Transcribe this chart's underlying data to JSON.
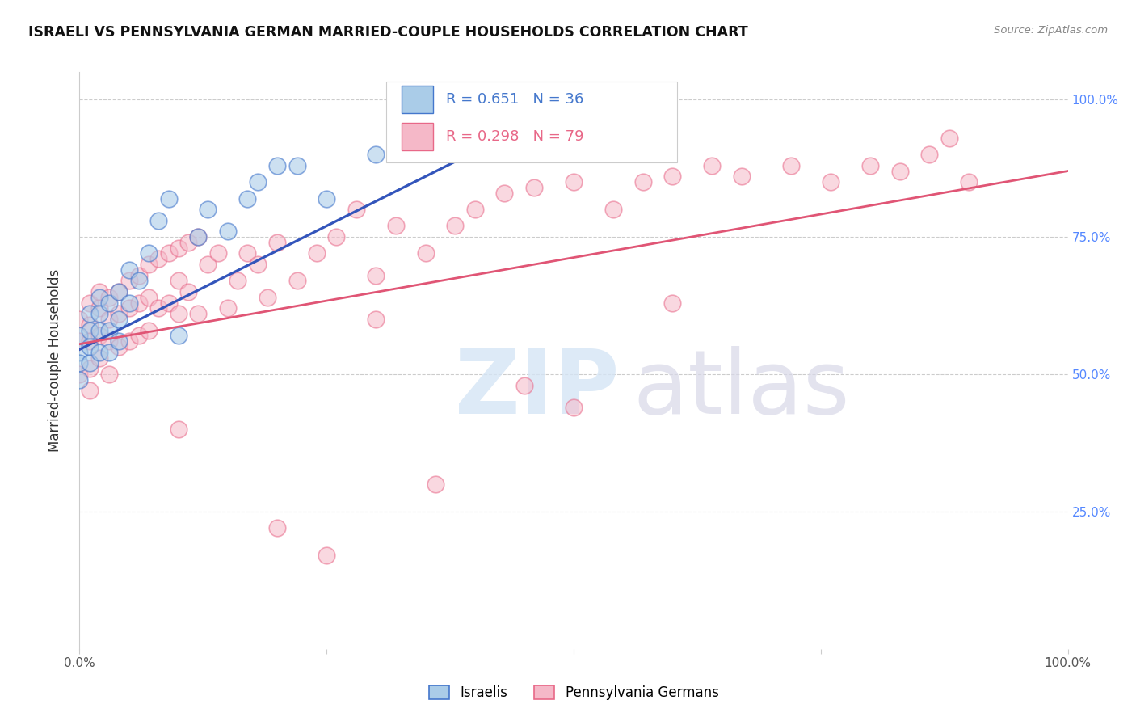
{
  "title": "ISRAELI VS PENNSYLVANIA GERMAN MARRIED-COUPLE HOUSEHOLDS CORRELATION CHART",
  "source": "Source: ZipAtlas.com",
  "ylabel": "Married-couple Households",
  "xlim": [
    0.0,
    1.0
  ],
  "ylim": [
    0.0,
    1.05
  ],
  "blue_R": 0.651,
  "blue_N": 36,
  "pink_R": 0.298,
  "pink_N": 79,
  "blue_fill": "#AACCE8",
  "pink_fill": "#F5B8C8",
  "blue_edge": "#4477CC",
  "pink_edge": "#E86888",
  "blue_line": "#3355BB",
  "pink_line": "#E05575",
  "legend_label_blue": "Israelis",
  "legend_label_pink": "Pennsylvania Germans",
  "ytick_positions": [
    0.25,
    0.5,
    0.75,
    1.0
  ],
  "ytick_labels": [
    "25.0%",
    "50.0%",
    "75.0%",
    "100.0%"
  ],
  "blue_x": [
    0.0,
    0.0,
    0.0,
    0.0,
    0.01,
    0.01,
    0.01,
    0.01,
    0.02,
    0.02,
    0.02,
    0.02,
    0.03,
    0.03,
    0.03,
    0.04,
    0.04,
    0.04,
    0.05,
    0.05,
    0.06,
    0.07,
    0.08,
    0.09,
    0.1,
    0.12,
    0.13,
    0.15,
    0.17,
    0.18,
    0.2,
    0.22,
    0.25,
    0.3,
    0.32,
    0.35
  ],
  "blue_y": [
    0.57,
    0.54,
    0.52,
    0.49,
    0.61,
    0.58,
    0.55,
    0.52,
    0.64,
    0.61,
    0.58,
    0.54,
    0.63,
    0.58,
    0.54,
    0.65,
    0.6,
    0.56,
    0.69,
    0.63,
    0.67,
    0.72,
    0.78,
    0.82,
    0.57,
    0.75,
    0.8,
    0.76,
    0.82,
    0.85,
    0.88,
    0.88,
    0.82,
    0.9,
    0.93,
    0.97
  ],
  "pink_x": [
    0.0,
    0.0,
    0.0,
    0.01,
    0.01,
    0.01,
    0.01,
    0.01,
    0.02,
    0.02,
    0.02,
    0.02,
    0.03,
    0.03,
    0.03,
    0.03,
    0.04,
    0.04,
    0.04,
    0.05,
    0.05,
    0.05,
    0.06,
    0.06,
    0.06,
    0.07,
    0.07,
    0.07,
    0.08,
    0.08,
    0.09,
    0.09,
    0.1,
    0.1,
    0.1,
    0.11,
    0.11,
    0.12,
    0.12,
    0.13,
    0.14,
    0.15,
    0.16,
    0.17,
    0.18,
    0.19,
    0.2,
    0.22,
    0.24,
    0.26,
    0.28,
    0.3,
    0.32,
    0.35,
    0.38,
    0.4,
    0.43,
    0.46,
    0.5,
    0.54,
    0.57,
    0.6,
    0.64,
    0.67,
    0.72,
    0.76,
    0.8,
    0.83,
    0.86,
    0.88,
    0.9,
    0.45,
    0.5,
    0.36,
    0.2,
    0.25,
    0.1,
    0.3,
    0.6
  ],
  "pink_y": [
    0.6,
    0.56,
    0.5,
    0.63,
    0.59,
    0.56,
    0.51,
    0.47,
    0.65,
    0.62,
    0.57,
    0.53,
    0.64,
    0.6,
    0.56,
    0.5,
    0.65,
    0.61,
    0.55,
    0.67,
    0.62,
    0.56,
    0.68,
    0.63,
    0.57,
    0.7,
    0.64,
    0.58,
    0.71,
    0.62,
    0.72,
    0.63,
    0.73,
    0.67,
    0.61,
    0.74,
    0.65,
    0.75,
    0.61,
    0.7,
    0.72,
    0.62,
    0.67,
    0.72,
    0.7,
    0.64,
    0.74,
    0.67,
    0.72,
    0.75,
    0.8,
    0.68,
    0.77,
    0.72,
    0.77,
    0.8,
    0.83,
    0.84,
    0.85,
    0.8,
    0.85,
    0.86,
    0.88,
    0.86,
    0.88,
    0.85,
    0.88,
    0.87,
    0.9,
    0.93,
    0.85,
    0.48,
    0.44,
    0.3,
    0.22,
    0.17,
    0.4,
    0.6,
    0.63
  ]
}
